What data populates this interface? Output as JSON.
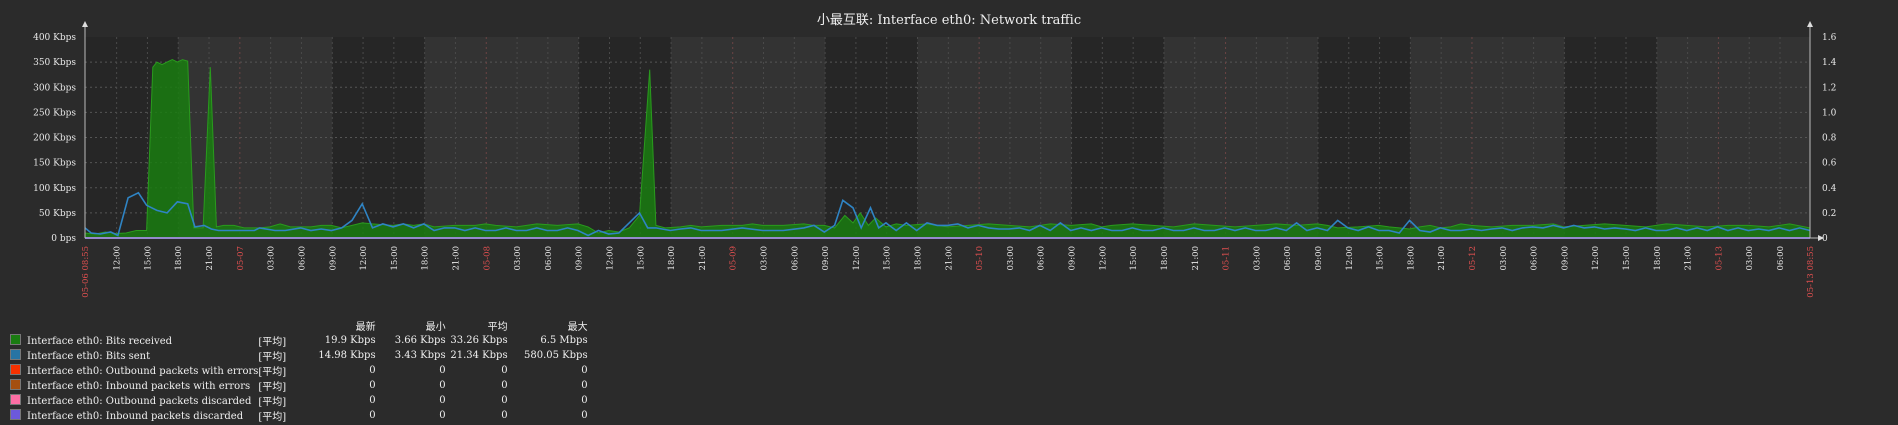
{
  "chart_data": {
    "type": "area",
    "title": "小最互联: Interface eth0: Network traffic",
    "colors": {
      "bits_received": "#1a7c11",
      "bits_sent": "#2774a4",
      "out_errors": "#f63100",
      "in_errors": "#a54f10",
      "out_discarded": "#fc6ea3",
      "in_discarded": "#6c59dc",
      "background": "#2b2b2b",
      "grid": "#444444"
    },
    "left_axis": {
      "unit": "Kbps",
      "ticks": [
        "0 bps",
        "50 Kbps",
        "100 Kbps",
        "150 Kbps",
        "200 Kbps",
        "250 Kbps",
        "300 Kbps",
        "350 Kbps",
        "400 Kbps"
      ],
      "ylim": [
        0,
        400
      ]
    },
    "right_axis": {
      "ticks": [
        "0",
        "0.2",
        "0.4",
        "0.6",
        "0.8",
        "1.0",
        "1.2",
        "1.4",
        "1.6"
      ],
      "ylim": [
        0,
        1.6
      ]
    },
    "x_labels": [
      {
        "t": "05-06 08:55",
        "h": 0,
        "red": true
      },
      {
        "t": "12:00",
        "h": 3.08
      },
      {
        "t": "15:00",
        "h": 6.08
      },
      {
        "t": "18:00",
        "h": 9.08
      },
      {
        "t": "21:00",
        "h": 12.08
      },
      {
        "t": "05-07",
        "h": 15.08,
        "red": true
      },
      {
        "t": "03:00",
        "h": 18.08
      },
      {
        "t": "06:00",
        "h": 21.08
      },
      {
        "t": "09:00",
        "h": 24.08
      },
      {
        "t": "12:00",
        "h": 27.08
      },
      {
        "t": "15:00",
        "h": 30.08
      },
      {
        "t": "18:00",
        "h": 33.08
      },
      {
        "t": "21:00",
        "h": 36.08
      },
      {
        "t": "05-08",
        "h": 39.08,
        "red": true
      },
      {
        "t": "03:00",
        "h": 42.08
      },
      {
        "t": "06:00",
        "h": 45.08
      },
      {
        "t": "09:00",
        "h": 48.08
      },
      {
        "t": "12:00",
        "h": 51.08
      },
      {
        "t": "15:00",
        "h": 54.08
      },
      {
        "t": "18:00",
        "h": 57.08
      },
      {
        "t": "21:00",
        "h": 60.08
      },
      {
        "t": "05-09",
        "h": 63.08,
        "red": true
      },
      {
        "t": "03:00",
        "h": 66.08
      },
      {
        "t": "06:00",
        "h": 69.08
      },
      {
        "t": "09:00",
        "h": 72.08
      },
      {
        "t": "12:00",
        "h": 75.08
      },
      {
        "t": "15:00",
        "h": 78.08
      },
      {
        "t": "18:00",
        "h": 81.08
      },
      {
        "t": "21:00",
        "h": 84.08
      },
      {
        "t": "05-10",
        "h": 87.08,
        "red": true
      },
      {
        "t": "03:00",
        "h": 90.08
      },
      {
        "t": "06:00",
        "h": 93.08
      },
      {
        "t": "09:00",
        "h": 96.08
      },
      {
        "t": "12:00",
        "h": 99.08
      },
      {
        "t": "15:00",
        "h": 102.08
      },
      {
        "t": "18:00",
        "h": 105.08
      },
      {
        "t": "21:00",
        "h": 108.08
      },
      {
        "t": "05-11",
        "h": 111.08,
        "red": true
      },
      {
        "t": "03:00",
        "h": 114.08
      },
      {
        "t": "06:00",
        "h": 117.08
      },
      {
        "t": "09:00",
        "h": 120.08
      },
      {
        "t": "12:00",
        "h": 123.08
      },
      {
        "t": "15:00",
        "h": 126.08
      },
      {
        "t": "18:00",
        "h": 129.08
      },
      {
        "t": "21:00",
        "h": 132.08
      },
      {
        "t": "05-12",
        "h": 135.08,
        "red": true
      },
      {
        "t": "03:00",
        "h": 138.08
      },
      {
        "t": "06:00",
        "h": 141.08
      },
      {
        "t": "09:00",
        "h": 144.08
      },
      {
        "t": "12:00",
        "h": 147.08
      },
      {
        "t": "15:00",
        "h": 150.08
      },
      {
        "t": "18:00",
        "h": 153.08
      },
      {
        "t": "21:00",
        "h": 156.08
      },
      {
        "t": "05-13",
        "h": 159.08,
        "red": true
      },
      {
        "t": "03:00",
        "h": 162.08
      },
      {
        "t": "06:00",
        "h": 165.08
      },
      {
        "t": "05-13 08:55",
        "h": 168,
        "red": true
      }
    ],
    "day_bands": [
      [
        9.08,
        24.08
      ],
      [
        33.08,
        48.08
      ],
      [
        57.08,
        72.08
      ],
      [
        81.08,
        96.08
      ],
      [
        105.08,
        120.08
      ],
      [
        129.08,
        144.08
      ],
      [
        153.08,
        168
      ]
    ],
    "received_kbps": [
      [
        0,
        10
      ],
      [
        1,
        8
      ],
      [
        2,
        12
      ],
      [
        3,
        9
      ],
      [
        4,
        10
      ],
      [
        5,
        15
      ],
      [
        6,
        15
      ],
      [
        6.6,
        340
      ],
      [
        7,
        350
      ],
      [
        7.5,
        345
      ],
      [
        8,
        350
      ],
      [
        8.5,
        355
      ],
      [
        9,
        350
      ],
      [
        9.5,
        355
      ],
      [
        10,
        352
      ],
      [
        10.6,
        20
      ],
      [
        11.5,
        20
      ],
      [
        12.2,
        340
      ],
      [
        12.8,
        22
      ],
      [
        13.5,
        25
      ],
      [
        14.5,
        25
      ],
      [
        15.5,
        20
      ],
      [
        17,
        20
      ],
      [
        18,
        22
      ],
      [
        19,
        28
      ],
      [
        20,
        22
      ],
      [
        22,
        22
      ],
      [
        23,
        25
      ],
      [
        24,
        25
      ],
      [
        25,
        20
      ],
      [
        26,
        25
      ],
      [
        27,
        30
      ],
      [
        28,
        28
      ],
      [
        30,
        25
      ],
      [
        31,
        28
      ],
      [
        32,
        25
      ],
      [
        33,
        28
      ],
      [
        34,
        22
      ],
      [
        36,
        25
      ],
      [
        38,
        25
      ],
      [
        39,
        28
      ],
      [
        40,
        25
      ],
      [
        42,
        22
      ],
      [
        44,
        28
      ],
      [
        46,
        25
      ],
      [
        48,
        28
      ],
      [
        49,
        22
      ],
      [
        50,
        10
      ],
      [
        51,
        15
      ],
      [
        52,
        12
      ],
      [
        53,
        20
      ],
      [
        54,
        45
      ],
      [
        55,
        335
      ],
      [
        55.6,
        25
      ],
      [
        56.5,
        20
      ],
      [
        58,
        22
      ],
      [
        59,
        25
      ],
      [
        60,
        22
      ],
      [
        62,
        25
      ],
      [
        64,
        25
      ],
      [
        65,
        28
      ],
      [
        66,
        25
      ],
      [
        68,
        25
      ],
      [
        70,
        28
      ],
      [
        71,
        25
      ],
      [
        72,
        25
      ],
      [
        73,
        20
      ],
      [
        74,
        45
      ],
      [
        74.8,
        30
      ],
      [
        75.5,
        50
      ],
      [
        76.3,
        25
      ],
      [
        77,
        40
      ],
      [
        78,
        22
      ],
      [
        79,
        28
      ],
      [
        80,
        25
      ],
      [
        82,
        28
      ],
      [
        84,
        22
      ],
      [
        86,
        25
      ],
      [
        88,
        28
      ],
      [
        90,
        25
      ],
      [
        92,
        22
      ],
      [
        94,
        28
      ],
      [
        96,
        25
      ],
      [
        98,
        28
      ],
      [
        99,
        22
      ],
      [
        100,
        25
      ],
      [
        102,
        28
      ],
      [
        104,
        25
      ],
      [
        106,
        22
      ],
      [
        108,
        28
      ],
      [
        110,
        25
      ],
      [
        112,
        22
      ],
      [
        114,
        25
      ],
      [
        116,
        28
      ],
      [
        118,
        25
      ],
      [
        120,
        28
      ],
      [
        121,
        25
      ],
      [
        122,
        20
      ],
      [
        124,
        22
      ],
      [
        126,
        25
      ],
      [
        127,
        22
      ],
      [
        128,
        20
      ],
      [
        129,
        18
      ],
      [
        130,
        22
      ],
      [
        131,
        25
      ],
      [
        132,
        20
      ],
      [
        133,
        22
      ],
      [
        134,
        28
      ],
      [
        135,
        25
      ],
      [
        137,
        22
      ],
      [
        139,
        25
      ],
      [
        141,
        25
      ],
      [
        143,
        28
      ],
      [
        144,
        22
      ],
      [
        146,
        25
      ],
      [
        148,
        28
      ],
      [
        150,
        25
      ],
      [
        152,
        22
      ],
      [
        154,
        28
      ],
      [
        156,
        25
      ],
      [
        158,
        22
      ],
      [
        160,
        25
      ],
      [
        162,
        25
      ],
      [
        164,
        22
      ],
      [
        166,
        28
      ],
      [
        168,
        20
      ]
    ],
    "sent_kbps": [
      [
        0,
        20
      ],
      [
        0.6,
        10
      ],
      [
        1.5,
        8
      ],
      [
        2.5,
        12
      ],
      [
        3.2,
        5
      ],
      [
        4.2,
        80
      ],
      [
        5.2,
        90
      ],
      [
        6,
        65
      ],
      [
        7,
        55
      ],
      [
        8,
        50
      ],
      [
        9,
        72
      ],
      [
        10,
        68
      ],
      [
        10.7,
        22
      ],
      [
        11.6,
        25
      ],
      [
        12.3,
        18
      ],
      [
        13,
        15
      ],
      [
        14,
        15
      ],
      [
        15,
        15
      ],
      [
        16.5,
        15
      ],
      [
        17,
        20
      ],
      [
        18.5,
        15
      ],
      [
        19.5,
        15
      ],
      [
        21,
        20
      ],
      [
        22,
        15
      ],
      [
        23,
        18
      ],
      [
        24,
        15
      ],
      [
        25,
        20
      ],
      [
        26,
        35
      ],
      [
        27,
        68
      ],
      [
        28,
        20
      ],
      [
        29,
        28
      ],
      [
        30,
        22
      ],
      [
        31,
        28
      ],
      [
        32,
        20
      ],
      [
        33,
        28
      ],
      [
        34,
        15
      ],
      [
        35,
        20
      ],
      [
        36,
        20
      ],
      [
        37,
        15
      ],
      [
        38,
        20
      ],
      [
        39,
        15
      ],
      [
        40,
        15
      ],
      [
        41,
        20
      ],
      [
        42,
        15
      ],
      [
        43,
        15
      ],
      [
        44,
        20
      ],
      [
        45,
        15
      ],
      [
        46,
        15
      ],
      [
        47,
        20
      ],
      [
        48,
        15
      ],
      [
        49,
        5
      ],
      [
        50,
        15
      ],
      [
        51,
        8
      ],
      [
        52,
        10
      ],
      [
        53,
        30
      ],
      [
        54,
        50
      ],
      [
        54.8,
        20
      ],
      [
        55.6,
        20
      ],
      [
        57,
        15
      ],
      [
        58,
        18
      ],
      [
        59,
        20
      ],
      [
        60,
        15
      ],
      [
        62,
        15
      ],
      [
        64,
        20
      ],
      [
        66,
        15
      ],
      [
        68,
        15
      ],
      [
        70,
        20
      ],
      [
        71,
        25
      ],
      [
        72,
        12
      ],
      [
        73,
        25
      ],
      [
        73.8,
        75
      ],
      [
        74.8,
        60
      ],
      [
        75.6,
        20
      ],
      [
        76.5,
        60
      ],
      [
        77.3,
        20
      ],
      [
        78,
        30
      ],
      [
        79,
        15
      ],
      [
        80,
        30
      ],
      [
        81,
        15
      ],
      [
        82,
        30
      ],
      [
        83,
        25
      ],
      [
        84,
        25
      ],
      [
        85,
        28
      ],
      [
        86,
        20
      ],
      [
        87,
        25
      ],
      [
        88,
        20
      ],
      [
        89,
        18
      ],
      [
        90,
        18
      ],
      [
        91,
        20
      ],
      [
        92,
        15
      ],
      [
        93,
        25
      ],
      [
        94,
        15
      ],
      [
        95,
        30
      ],
      [
        96,
        15
      ],
      [
        97,
        20
      ],
      [
        98,
        15
      ],
      [
        99,
        20
      ],
      [
        100,
        15
      ],
      [
        101,
        15
      ],
      [
        102,
        20
      ],
      [
        103,
        15
      ],
      [
        104,
        15
      ],
      [
        105,
        20
      ],
      [
        106,
        15
      ],
      [
        107,
        15
      ],
      [
        108,
        20
      ],
      [
        109,
        15
      ],
      [
        110,
        15
      ],
      [
        111,
        20
      ],
      [
        112,
        15
      ],
      [
        113,
        20
      ],
      [
        114,
        15
      ],
      [
        115,
        15
      ],
      [
        116,
        20
      ],
      [
        117,
        15
      ],
      [
        118,
        30
      ],
      [
        119,
        15
      ],
      [
        120,
        20
      ],
      [
        121,
        15
      ],
      [
        122,
        35
      ],
      [
        123,
        20
      ],
      [
        124,
        15
      ],
      [
        125,
        22
      ],
      [
        126,
        15
      ],
      [
        127,
        15
      ],
      [
        128,
        10
      ],
      [
        129,
        35
      ],
      [
        130,
        15
      ],
      [
        131,
        12
      ],
      [
        132,
        20
      ],
      [
        133,
        15
      ],
      [
        134,
        15
      ],
      [
        135,
        18
      ],
      [
        136,
        15
      ],
      [
        137,
        18
      ],
      [
        138,
        20
      ],
      [
        139,
        15
      ],
      [
        140,
        20
      ],
      [
        141,
        22
      ],
      [
        142,
        20
      ],
      [
        143,
        25
      ],
      [
        144,
        20
      ],
      [
        145,
        25
      ],
      [
        146,
        20
      ],
      [
        147,
        22
      ],
      [
        148,
        18
      ],
      [
        149,
        20
      ],
      [
        150,
        18
      ],
      [
        151,
        15
      ],
      [
        152,
        20
      ],
      [
        153,
        15
      ],
      [
        154,
        15
      ],
      [
        155,
        20
      ],
      [
        156,
        15
      ],
      [
        157,
        20
      ],
      [
        158,
        15
      ],
      [
        159,
        22
      ],
      [
        160,
        15
      ],
      [
        161,
        20
      ],
      [
        162,
        15
      ],
      [
        163,
        18
      ],
      [
        164,
        15
      ],
      [
        165,
        20
      ],
      [
        166,
        15
      ],
      [
        167,
        20
      ],
      [
        168,
        15
      ]
    ]
  },
  "legend": {
    "headers": {
      "last": "最新",
      "min": "最小",
      "avg": "平均",
      "max": "最大"
    },
    "rows": [
      {
        "name": "Interface eth0: Bits received",
        "color": "#1a7c11",
        "agg": "[平均]",
        "last": "19.9 Kbps",
        "min": "3.66 Kbps",
        "avg": "33.26 Kbps",
        "max": "6.5 Mbps"
      },
      {
        "name": "Interface eth0: Bits sent",
        "color": "#2774a4",
        "agg": "[平均]",
        "last": "14.98 Kbps",
        "min": "3.43 Kbps",
        "avg": "21.34 Kbps",
        "max": "580.05 Kbps"
      },
      {
        "name": "Interface eth0: Outbound packets with errors",
        "color": "#f63100",
        "agg": "[平均]",
        "last": "0",
        "min": "0",
        "avg": "0",
        "max": "0"
      },
      {
        "name": "Interface eth0: Inbound packets with errors",
        "color": "#a54f10",
        "agg": "[平均]",
        "last": "0",
        "min": "0",
        "avg": "0",
        "max": "0"
      },
      {
        "name": "Interface eth0: Outbound packets discarded",
        "color": "#fc6ea3",
        "agg": "[平均]",
        "last": "0",
        "min": "0",
        "avg": "0",
        "max": "0"
      },
      {
        "name": "Interface eth0: Inbound packets discarded",
        "color": "#6c59dc",
        "agg": "[平均]",
        "last": "0",
        "min": "0",
        "avg": "0",
        "max": "0"
      }
    ]
  }
}
